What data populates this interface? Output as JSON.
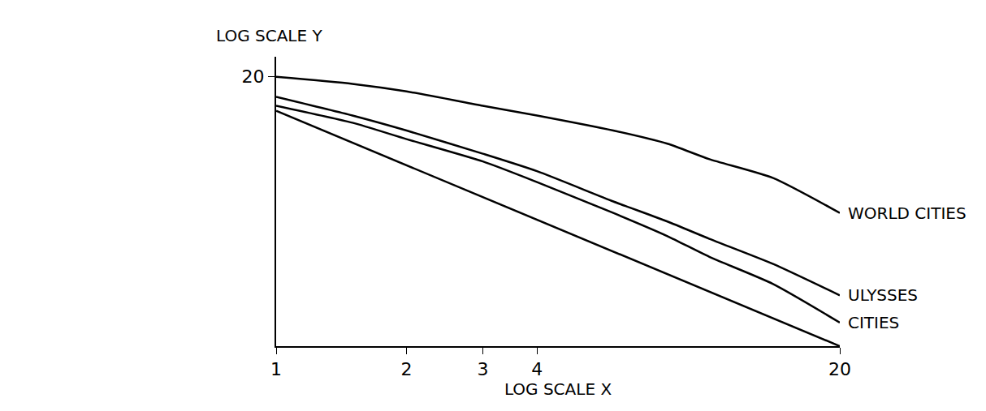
{
  "chart_data": {
    "type": "line",
    "xlabel": "LOG SCALE X",
    "ylabel": "LOG SCALE Y",
    "log": true,
    "grid": false,
    "xlim": [
      1,
      20
    ],
    "xticks": [
      1,
      2,
      3,
      4,
      20
    ],
    "ylim": [
      1,
      25
    ],
    "yticks": [
      20
    ],
    "series": [
      {
        "name": "WORLD CITIES",
        "color": "#000000",
        "x": [
          1,
          1.5,
          2,
          3,
          4,
          6,
          8,
          10,
          14,
          20
        ],
        "values": [
          20,
          18.5,
          17,
          14.5,
          13,
          11,
          9.5,
          8,
          6.5,
          4.4
        ]
      },
      {
        "name": "ULYSSES",
        "color": "#000000",
        "x": [
          1,
          1.5,
          2,
          3,
          4,
          6,
          8,
          10,
          14,
          20
        ],
        "values": [
          16,
          13,
          11,
          8.5,
          7,
          5,
          4,
          3.3,
          2.5,
          1.76
        ]
      },
      {
        "name": "CITIES",
        "color": "#000000",
        "x": [
          1,
          1.5,
          2,
          3,
          4,
          6,
          8,
          10,
          14,
          20
        ],
        "values": [
          14.5,
          12,
          10,
          7.8,
          6.2,
          4.4,
          3.4,
          2.7,
          2,
          1.3
        ]
      },
      {
        "name": null,
        "color": "#000000",
        "x": [
          1,
          20
        ],
        "values": [
          13.7,
          1
        ]
      }
    ]
  }
}
